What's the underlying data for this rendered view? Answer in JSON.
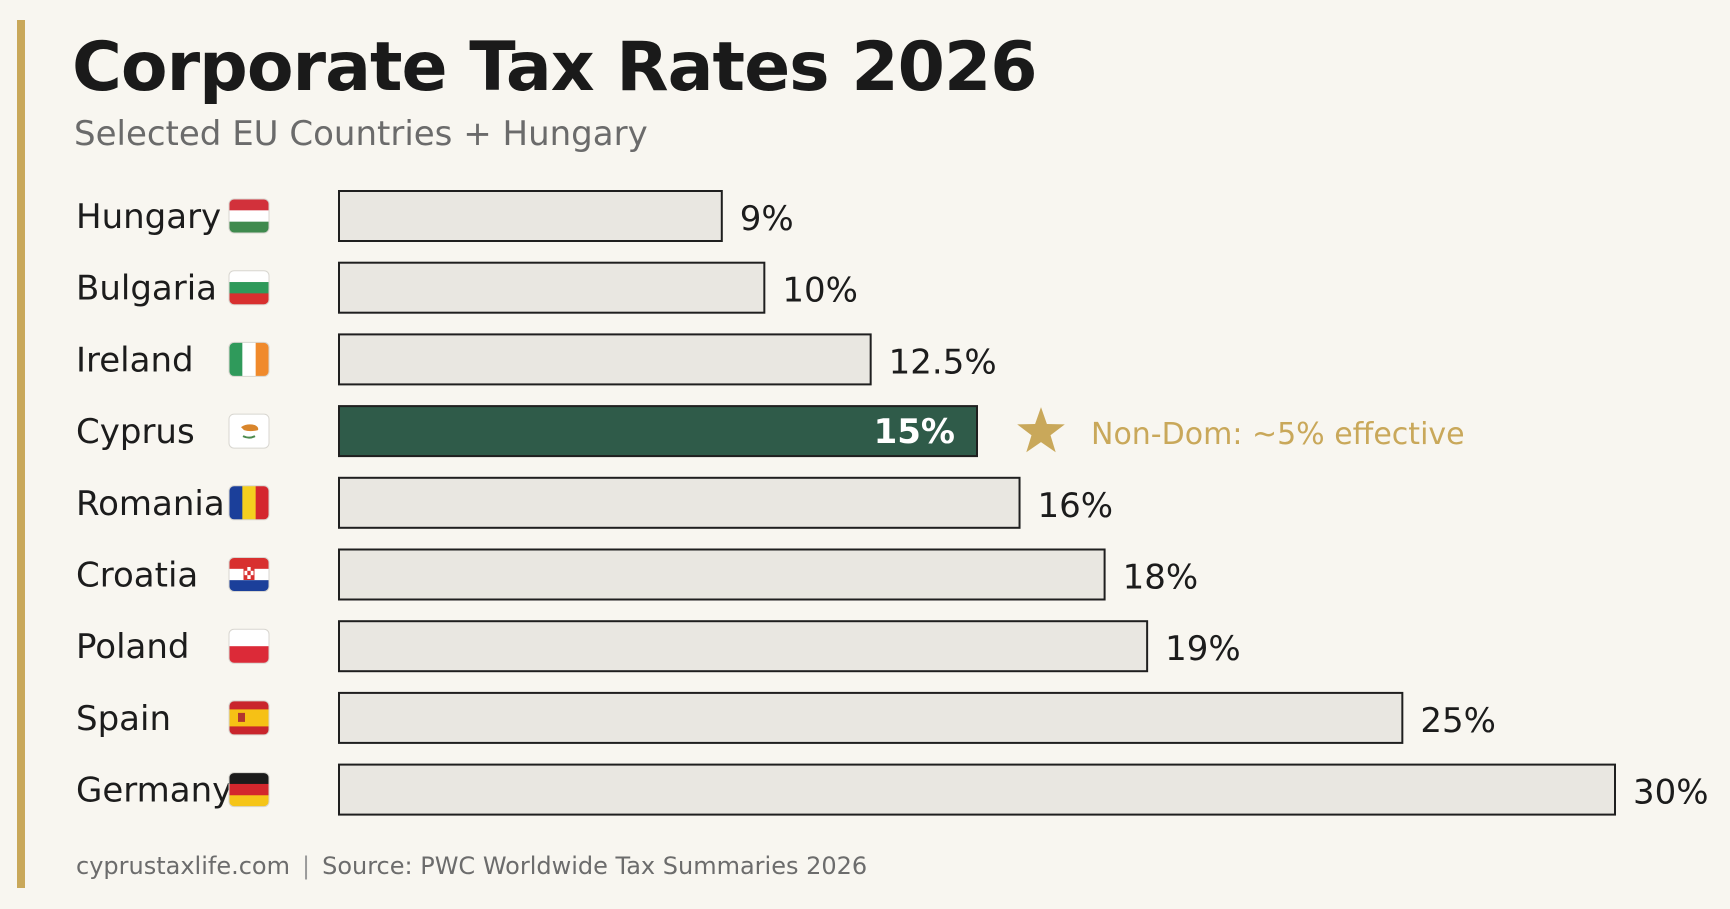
{
  "title": "Corporate Tax Rates 2026",
  "subtitle": "Selected EU Countries + Hungary",
  "footer": {
    "site": "cyprustaxlife.com",
    "separator": "|",
    "source": "Source: PWC Worldwide Tax Summaries 2026"
  },
  "colors": {
    "accent": "#c9a85a",
    "highlight_bar": "#2f5b49",
    "bar": "#e9e7e1",
    "bar_border": "#1f1f1f",
    "annotation": "#c9a85a"
  },
  "chart_data": {
    "type": "bar",
    "orientation": "horizontal",
    "categories": [
      "Hungary",
      "Bulgaria",
      "Ireland",
      "Cyprus",
      "Romania",
      "Croatia",
      "Poland",
      "Spain",
      "Germany"
    ],
    "values": [
      9,
      10,
      12.5,
      15,
      16,
      18,
      19,
      25,
      30
    ],
    "value_labels": [
      "9%",
      "10%",
      "12.5%",
      "15%",
      "16%",
      "18%",
      "19%",
      "25%",
      "30%"
    ],
    "flags": [
      "hungary-flag-icon",
      "bulgaria-flag-icon",
      "ireland-flag-icon",
      "cyprus-flag-icon",
      "romania-flag-icon",
      "croatia-flag-icon",
      "poland-flag-icon",
      "spain-flag-icon",
      "germany-flag-icon"
    ],
    "highlight": "Cyprus",
    "annotation": {
      "category": "Cyprus",
      "icon": "star-icon",
      "text": "Non-Dom: ~5% effective"
    },
    "xlim": [
      0,
      30
    ],
    "grid": false,
    "legend": "none"
  }
}
